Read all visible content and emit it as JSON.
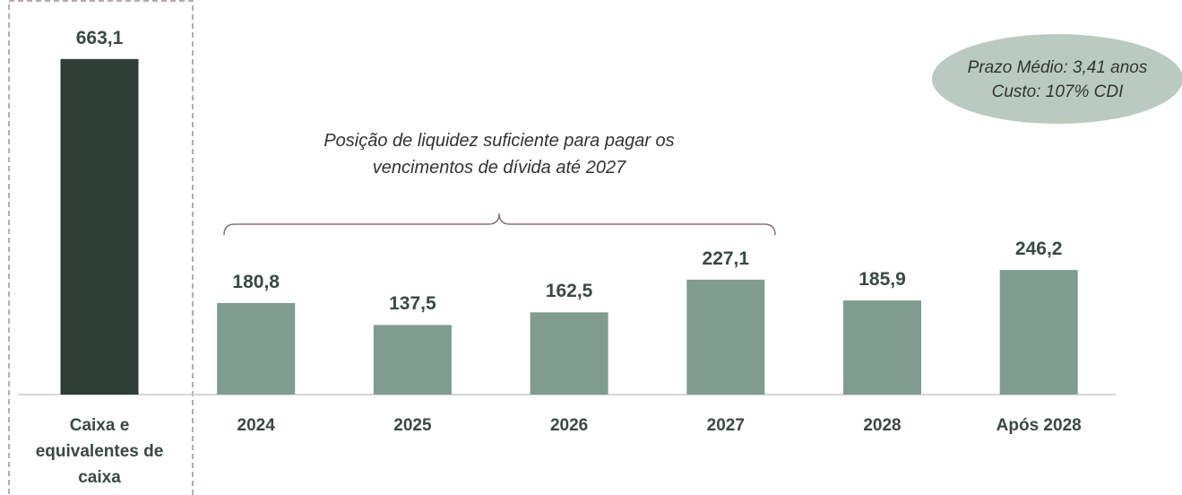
{
  "chart_data": {
    "type": "bar",
    "categories": [
      "Caixa e equivalentes de caixa",
      "2024",
      "2025",
      "2026",
      "2027",
      "2028",
      "Após 2028"
    ],
    "values": [
      663.1,
      180.8,
      137.5,
      162.5,
      227.1,
      185.9,
      246.2
    ],
    "value_labels": [
      "663,1",
      "180,8",
      "137,5",
      "162,5",
      "227,1",
      "185,9",
      "246,2"
    ],
    "colors": [
      "#2f3d37",
      "#7f9c8f",
      "#7f9c8f",
      "#7f9c8f",
      "#7f9c8f",
      "#7f9c8f",
      "#7f9c8f"
    ],
    "ylim": [
      0,
      700
    ],
    "annotations": [
      "Posição de liquidez suficiente para pagar os vencimentos de dívida até 2027",
      "Prazo Médio: 3,41 anos",
      "Custo: 107% CDI"
    ]
  }
}
